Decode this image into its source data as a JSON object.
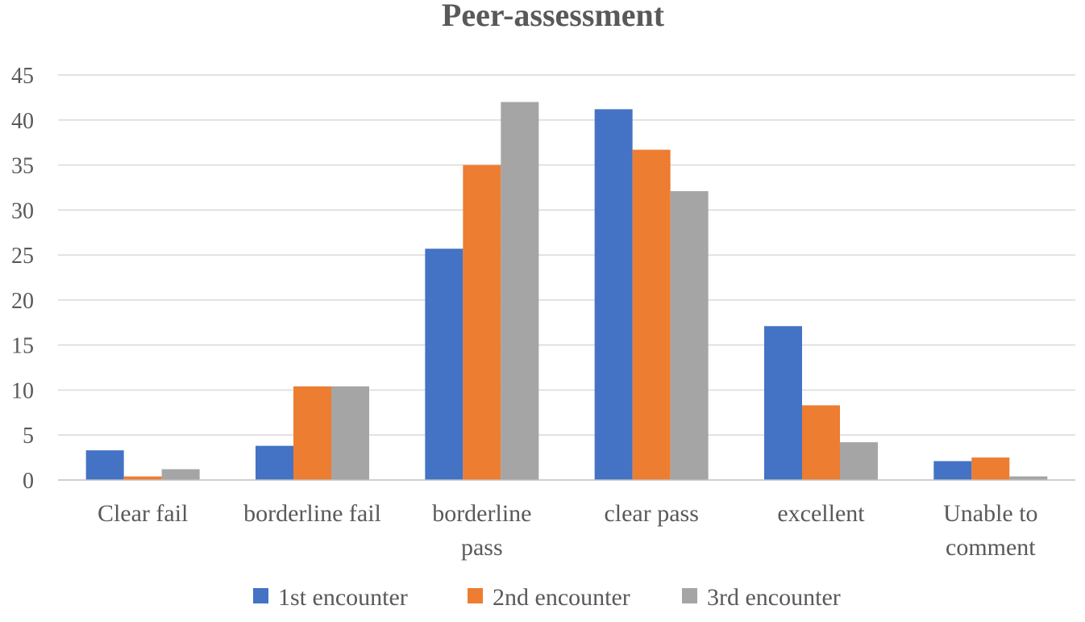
{
  "chart_data": {
    "type": "bar",
    "title": "Peer-assessment",
    "xlabel": "",
    "ylabel": "",
    "ylim": [
      0,
      45
    ],
    "yticks": [
      0,
      5,
      10,
      15,
      20,
      25,
      30,
      35,
      40,
      45
    ],
    "grid": true,
    "legend_position": "bottom",
    "categories": [
      [
        "Clear fail"
      ],
      [
        "borderline fail"
      ],
      [
        "borderline",
        "pass"
      ],
      [
        "clear pass"
      ],
      [
        "excellent"
      ],
      [
        "Unable to",
        "comment"
      ]
    ],
    "series": [
      {
        "name": "1st encounter",
        "color": "#4472C4",
        "values": [
          3.3,
          3.8,
          25.7,
          41.2,
          17.1,
          2.1
        ]
      },
      {
        "name": "2nd encounter",
        "color": "#ED7D31",
        "values": [
          0.4,
          10.4,
          35.0,
          36.7,
          8.3,
          2.5
        ]
      },
      {
        "name": "3rd encounter",
        "color": "#A5A5A5",
        "values": [
          1.2,
          10.4,
          42.0,
          32.1,
          4.2,
          0.4
        ]
      }
    ]
  }
}
